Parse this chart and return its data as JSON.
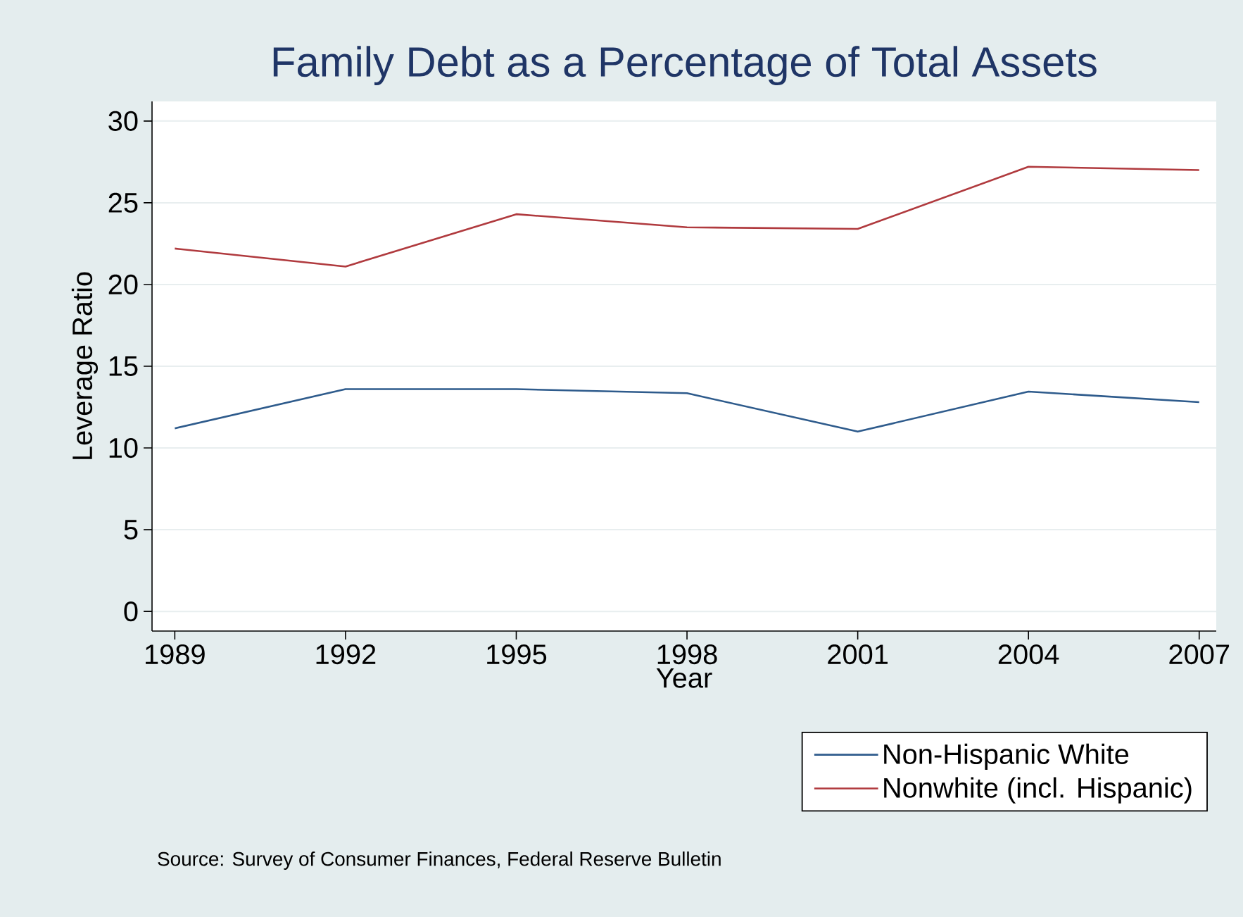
{
  "chart_data": {
    "type": "line",
    "title": "Family Debt as a Percentage of Total Assets",
    "xlabel": "Year",
    "ylabel": "Leverage Ratio",
    "x": [
      1989,
      1992,
      1995,
      1998,
      2001,
      2004,
      2007
    ],
    "series": [
      {
        "name": "Non-Hispanic White",
        "color": "#2e5b8c",
        "values": [
          11.2,
          13.6,
          13.6,
          13.35,
          11.0,
          13.45,
          12.8
        ]
      },
      {
        "name": "Nonwhite (incl. Hispanic)",
        "color": "#b03a3e",
        "values": [
          22.2,
          21.1,
          24.3,
          23.5,
          23.4,
          27.2,
          27.0
        ]
      }
    ],
    "xlim": [
      1988.6,
      2007.3
    ],
    "ylim": [
      -1.2,
      31.2
    ],
    "xticks": [
      1989,
      1992,
      1995,
      1998,
      2001,
      2004,
      2007
    ],
    "yticks": [
      0,
      5,
      10,
      15,
      20,
      25,
      30
    ],
    "grid": "y",
    "legend": "bottom right",
    "annotations": [
      "Source: Survey of Consumer Finances, Federal Reserve Bulletin"
    ]
  }
}
